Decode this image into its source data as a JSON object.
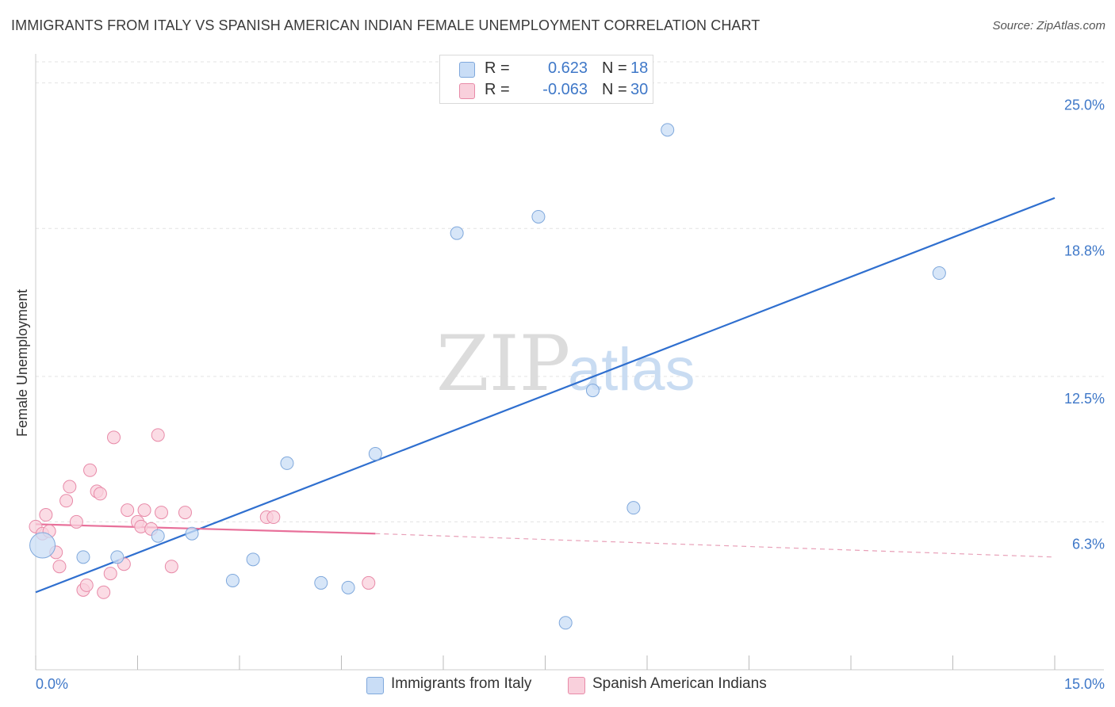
{
  "title": "IMMIGRANTS FROM ITALY VS SPANISH AMERICAN INDIAN FEMALE UNEMPLOYMENT CORRELATION CHART",
  "source": "Source: ZipAtlas.com",
  "watermark": {
    "zip": "ZIP",
    "atlas": "atlas"
  },
  "legend": {
    "rows": [
      {
        "r_label": "R =",
        "r_value": "0.623",
        "n_label": "N =",
        "n_value": "18",
        "color": "#b8d4f4",
        "border": "#7fa8dc"
      },
      {
        "r_label": "R =",
        "r_value": "-0.063",
        "n_label": "N =",
        "n_value": "30",
        "color": "#f9c4d4",
        "border": "#e88aa8"
      }
    ]
  },
  "bottom_legend": {
    "series1": "Immigrants from Italy",
    "series2": "Spanish American Indians"
  },
  "chart_data": {
    "type": "scatter",
    "title": "IMMIGRANTS FROM ITALY VS SPANISH AMERICAN INDIAN FEMALE UNEMPLOYMENT CORRELATION CHART",
    "xlabel": "",
    "ylabel": "Female Unemployment",
    "xlim": [
      0,
      15
    ],
    "ylim": [
      0,
      25.9
    ],
    "x_tick_labels": [
      "0.0%",
      "15.0%"
    ],
    "y_ticks": [
      6.3,
      12.5,
      18.8,
      25.0
    ],
    "y_tick_labels": [
      "6.3%",
      "12.5%",
      "18.8%",
      "25.0%"
    ],
    "grid": true,
    "series": [
      {
        "name": "Immigrants from Italy",
        "color": "#7fa8dc",
        "fill": "#c9ddf6",
        "points": [
          [
            0.1,
            5.3
          ],
          [
            0.7,
            4.8
          ],
          [
            1.2,
            4.8
          ],
          [
            1.8,
            5.7
          ],
          [
            2.3,
            5.8
          ],
          [
            2.9,
            3.8
          ],
          [
            3.2,
            4.7
          ],
          [
            3.7,
            8.8
          ],
          [
            4.2,
            3.7
          ],
          [
            4.6,
            3.5
          ],
          [
            5.0,
            9.2
          ],
          [
            6.2,
            18.6
          ],
          [
            7.4,
            19.3
          ],
          [
            7.8,
            2.0
          ],
          [
            8.2,
            11.9
          ],
          [
            8.8,
            6.9
          ],
          [
            9.3,
            23.0
          ],
          [
            13.3,
            16.9
          ]
        ],
        "trend": {
          "x": [
            0,
            15
          ],
          "y": [
            3.3,
            20.1
          ]
        }
      },
      {
        "name": "Spanish American Indians",
        "color": "#e88aa8",
        "fill": "#f9d0dc",
        "points": [
          [
            0.0,
            6.1
          ],
          [
            0.1,
            5.8
          ],
          [
            0.15,
            6.6
          ],
          [
            0.2,
            5.9
          ],
          [
            0.3,
            5.0
          ],
          [
            0.35,
            4.4
          ],
          [
            0.45,
            7.2
          ],
          [
            0.5,
            7.8
          ],
          [
            0.6,
            6.3
          ],
          [
            0.7,
            3.4
          ],
          [
            0.75,
            3.6
          ],
          [
            0.8,
            8.5
          ],
          [
            0.9,
            7.6
          ],
          [
            0.95,
            7.5
          ],
          [
            1.0,
            3.3
          ],
          [
            1.1,
            4.1
          ],
          [
            1.15,
            9.9
          ],
          [
            1.3,
            4.5
          ],
          [
            1.35,
            6.8
          ],
          [
            1.5,
            6.3
          ],
          [
            1.55,
            6.1
          ],
          [
            1.6,
            6.8
          ],
          [
            1.7,
            6.0
          ],
          [
            1.8,
            10.0
          ],
          [
            1.85,
            6.7
          ],
          [
            2.0,
            4.4
          ],
          [
            2.2,
            6.7
          ],
          [
            3.4,
            6.5
          ],
          [
            3.5,
            6.5
          ],
          [
            4.9,
            3.7
          ]
        ],
        "trend_solid": {
          "x": [
            0,
            5.0
          ],
          "y": [
            6.2,
            5.8
          ]
        },
        "trend_dashed": {
          "x": [
            5.0,
            15
          ],
          "y": [
            5.8,
            4.8
          ]
        }
      }
    ]
  }
}
